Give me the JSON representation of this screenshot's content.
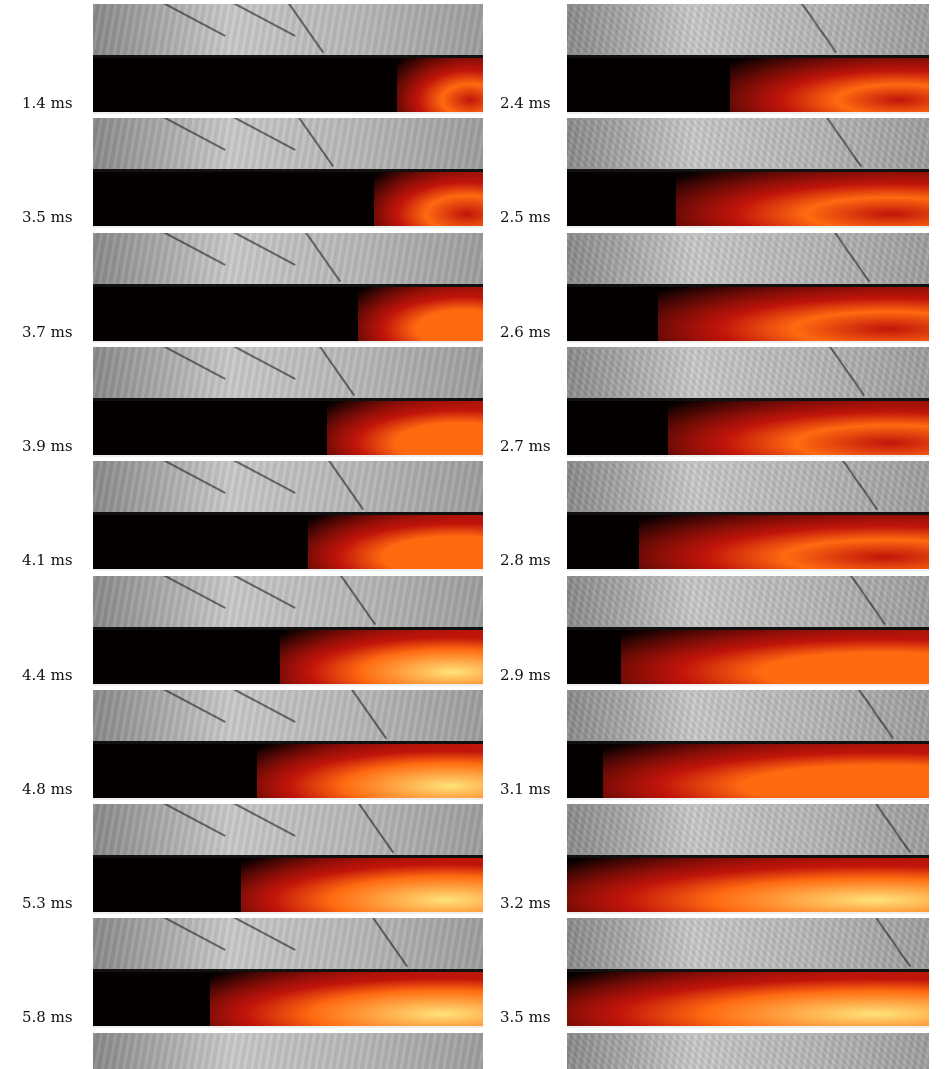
{
  "left_column": {
    "labels": [
      "1.4 ms",
      "3.5 ms",
      "3.7 ms",
      "3.9 ms",
      "4.1 ms",
      "4.4 ms",
      "4.8 ms",
      "5.3 ms",
      "5.8 ms"
    ],
    "flame_fraction": [
      0.22,
      0.28,
      0.32,
      0.4,
      0.45,
      0.52,
      0.58,
      0.62,
      0.7
    ],
    "flame_intensity": [
      0.35,
      0.55,
      0.6,
      0.7,
      0.75,
      0.9,
      0.95,
      1.0,
      1.0
    ]
  },
  "right_column": {
    "labels": [
      "2.4 ms",
      "2.5 ms",
      "2.6 ms",
      "2.7 ms",
      "2.8 ms",
      "2.9 ms",
      "3.1 ms",
      "3.2 ms",
      "3.5 ms"
    ],
    "flame_fraction": [
      0.55,
      0.7,
      0.75,
      0.72,
      0.8,
      0.85,
      0.9,
      1.0,
      1.0
    ],
    "flame_intensity": [
      0.3,
      0.4,
      0.45,
      0.5,
      0.45,
      0.65,
      0.75,
      0.85,
      0.95
    ]
  },
  "colors": {
    "background": "#ffffff",
    "label_text": "#111111",
    "flame_dark": "#050000",
    "flame_red": "#c0140a",
    "flame_orange": "#ff6a10",
    "flame_yellow": "#ffe37a"
  }
}
